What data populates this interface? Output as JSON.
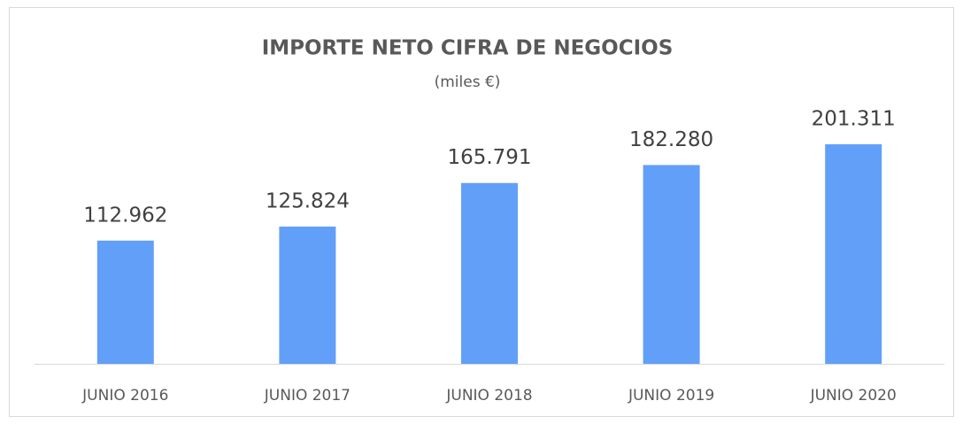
{
  "chart_data": {
    "type": "bar",
    "title": "IMPORTE NETO CIFRA DE NEGOCIOS",
    "subtitle": "(miles €)",
    "categories": [
      "JUNIO 2016",
      "JUNIO 2017",
      "JUNIO 2018",
      "JUNIO 2019",
      "JUNIO 2020"
    ],
    "values": [
      112962,
      125824,
      165791,
      182280,
      201311
    ],
    "value_labels": [
      "112.962",
      "125.824",
      "165.791",
      "182.280",
      "201.311"
    ],
    "color": "#629ff8",
    "ylim": [
      0,
      250000
    ]
  }
}
